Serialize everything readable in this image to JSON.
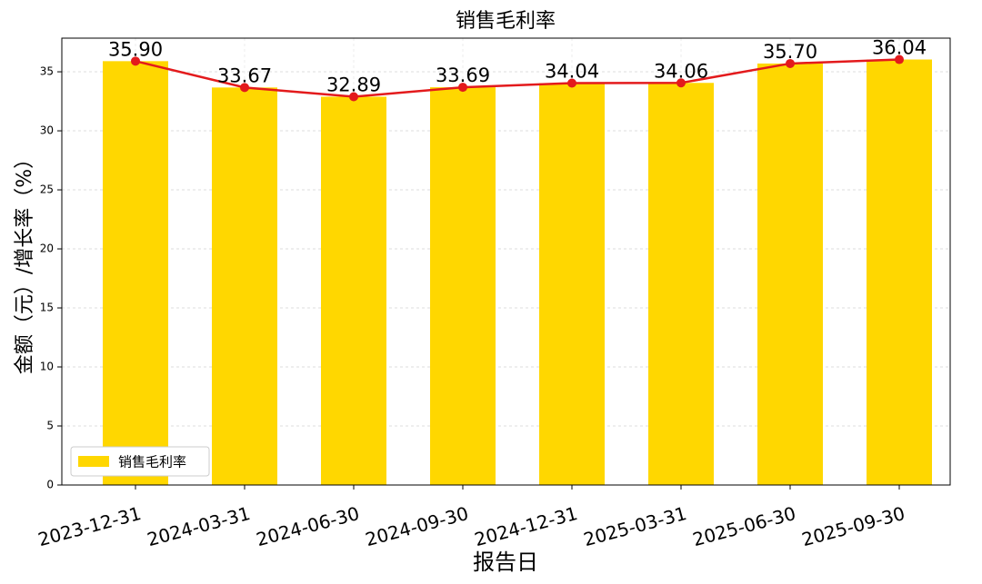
{
  "chart_data": {
    "type": "bar",
    "title": "销售毛利率",
    "x_label": "报告日",
    "y_label": "金额（元）/增长率（%）",
    "categories": [
      "2023-12-31",
      "2024-03-31",
      "2024-06-30",
      "2024-09-30",
      "2024-12-31",
      "2025-03-31",
      "2025-06-30",
      "2025-09-30"
    ],
    "series": [
      {
        "name": "销售毛利率",
        "color": "#ffd700",
        "line_color": "#e31a1c",
        "values": [
          35.9,
          33.67,
          32.89,
          33.69,
          34.04,
          34.06,
          35.7,
          36.04
        ],
        "value_labels": [
          "35.90",
          "33.67",
          "32.89",
          "33.69",
          "34.04",
          "34.06",
          "35.70",
          "36.04"
        ]
      }
    ],
    "ylim": [
      0,
      37.85
    ],
    "yticks": [
      0,
      5,
      10,
      15,
      20,
      25,
      30,
      35
    ],
    "grid": true,
    "legend": "lower left"
  }
}
